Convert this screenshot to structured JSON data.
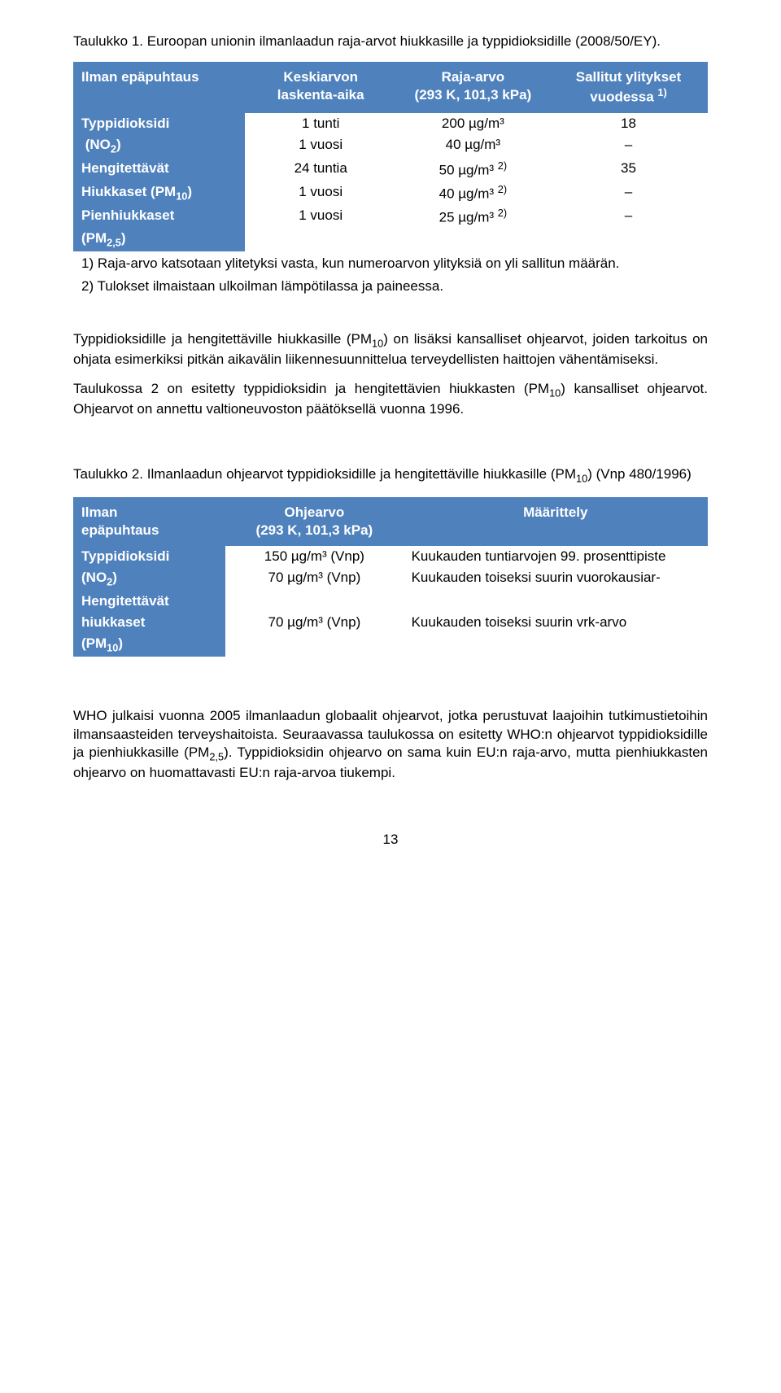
{
  "caption1": "Taulukko 1. Euroopan unionin ilmanlaadun raja-arvot hiukkasille ja typpidioksidille (2008/50/EY).",
  "t1": {
    "h1": "Ilman epäpuhtaus",
    "h2a": "Keskiarvon",
    "h2b": "laskenta-aika",
    "h3a": "Raja-arvo",
    "h3b": "(293 K, 101,3 kPa)",
    "h4a": "Sallitut ylitykset",
    "h4b": "vuodessa ",
    "h4sup": "1)",
    "r1a": "Typpidioksidi",
    "r1b": "(NO",
    "r1sub": "2",
    "r1c": ")",
    "r1v1": "1 tunti",
    "r1v2": "1 vuosi",
    "r1v3": "200 µg/m³",
    "r1v4": "40 µg/m³",
    "r1v5": "18",
    "r1v6": "–",
    "r2a": "Hengitettävät",
    "r2b": "Hiukkaset (PM",
    "r2sub": "10",
    "r2c": ")",
    "r2v1": "24 tuntia",
    "r2v2": "1 vuosi",
    "r2v3": "50 µg/m³ ",
    "r2v3sup": "2)",
    "r2v4": "40 µg/m³ ",
    "r2v4sup": "2)",
    "r2v5": "35",
    "r2v6": "–",
    "r3a": "Pienhiukkaset",
    "r3b": "(PM",
    "r3sub": "2,5",
    "r3c": ")",
    "r3v1": "1 vuosi",
    "r3v3": "25 µg/m³ ",
    "r3v3sup": "2)",
    "r3v5": "–",
    "note1": "1) Raja-arvo katsotaan ylitetyksi vasta, kun numeroarvon ylityksiä on yli sallitun määrän.",
    "note2": "2) Tulokset ilmaistaan ulkoilman lämpötilassa ja paineessa."
  },
  "para1a": "Typpidioksidille ja hengitettäville hiukkasille (PM",
  "para1sub": "10",
  "para1b": ") on lisäksi kansalliset ohjearvot, joiden tarkoitus on ohjata esimerkiksi pitkän aikavälin liikennesuunnittelua terveydellisten haittojen vähentämiseksi.",
  "para2a": "Taulukossa 2 on esitetty typpidioksidin ja hengitettävien hiukkasten (PM",
  "para2sub": "10",
  "para2b": ") kansalliset ohjearvot. Ohjearvot on annettu valtioneuvoston päätöksellä vuonna 1996.",
  "caption2a": "Taulukko 2. Ilmanlaadun ohjearvot typpidioksidille ja hengitettäville hiukkasille (PM",
  "caption2sub": "10",
  "caption2b": ") (Vnp 480/1996)",
  "t2": {
    "h1a": "Ilman",
    "h1b": "epäpuhtaus",
    "h2a": "Ohjearvo",
    "h2b": "(293 K, 101,3 kPa)",
    "h3": "Määrittely",
    "r1a": "Typpidioksidi",
    "r1b": "(NO",
    "r1sub": "2",
    "r1c": ")",
    "r1v1": "150 µg/m³ (Vnp)",
    "r1v2": "70 µg/m³ (Vnp)",
    "r1d1": "Kuukauden tuntiarvojen 99. prosenttipiste",
    "r1d2": "Kuukauden toiseksi suurin vuorokausiar-",
    "r2a": "Hengitettävät",
    "r2b": "hiukkaset",
    "r2c": "(PM",
    "r2sub": "10",
    "r2d": ")",
    "r2v1": "70 µg/m³ (Vnp)",
    "r2d1": "Kuukauden toiseksi suurin vrk-arvo"
  },
  "para3a": "WHO julkaisi vuonna 2005 ilmanlaadun globaalit ohjearvot, jotka perustuvat laajoihin tutkimustietoihin ilmansaasteiden terveyshaitoista. Seuraavassa taulukossa on esitetty WHO:n ohjearvot typpidioksidille ja pienhiukkasille (PM",
  "para3sub": "2,5",
  "para3b": "). Typpidioksidin ohjearvo on sama kuin EU:n raja-arvo, mutta pienhiukkasten ohjearvo on huomattavasti EU:n raja-arvoa tiukempi.",
  "pagenum": "13"
}
